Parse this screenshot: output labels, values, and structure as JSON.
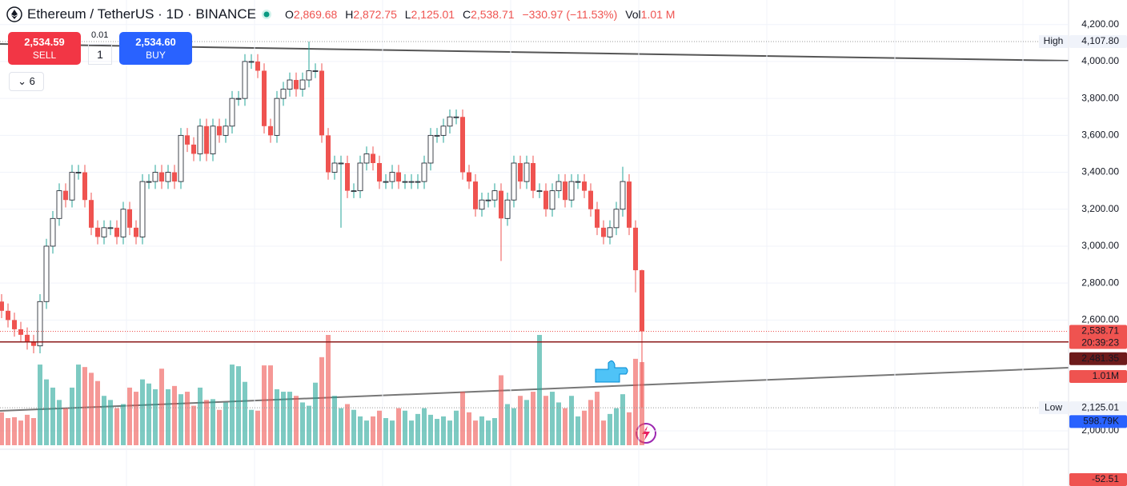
{
  "header": {
    "symbol": "Ethereum / TetherUS · 1D · BINANCE",
    "ohlc": [
      {
        "key": "O",
        "value": "2,869.68"
      },
      {
        "key": "H",
        "value": "2,872.75"
      },
      {
        "key": "L",
        "value": "2,125.01"
      },
      {
        "key": "C",
        "value": "2,538.71"
      }
    ],
    "change": "−330.97 (−11.53%)",
    "vol_key": "Vol",
    "vol": "1.01 M"
  },
  "trade": {
    "sell_price": "2,534.59",
    "sell": "SELL",
    "step": "0.01",
    "qty": "1",
    "buy_price": "2,534.60",
    "buy": "BUY"
  },
  "indicators_count": "6",
  "chart_data": {
    "type": "candlestick",
    "grid": true,
    "up_color": "#26a69a",
    "down_color": "#ef5350",
    "ylim": [
      1922,
      4333
    ],
    "yticks": [
      {
        "value": 2000,
        "label": "2,000.00"
      },
      {
        "value": 2600,
        "label": "2,600.00"
      },
      {
        "value": 2800,
        "label": "2,800.00"
      },
      {
        "value": 3000,
        "label": "3,000.00"
      },
      {
        "value": 3200,
        "label": "3,200.00"
      },
      {
        "value": 3400,
        "label": "3,400.00"
      },
      {
        "value": 3600,
        "label": "3,600.00"
      },
      {
        "value": 3800,
        "label": "3,800.00"
      },
      {
        "value": 4000,
        "label": "4,000.00"
      },
      {
        "value": 4200,
        "label": "4,200.00"
      }
    ],
    "candles": [
      [
        2700,
        2740,
        2610,
        2650
      ],
      [
        2650,
        2690,
        2560,
        2600
      ],
      [
        2600,
        2640,
        2510,
        2550
      ],
      [
        2550,
        2590,
        2480,
        2520
      ],
      [
        2520,
        2560,
        2440,
        2480
      ],
      [
        2480,
        2520,
        2420,
        2460
      ],
      [
        2460,
        2740,
        2420,
        2700
      ],
      [
        2700,
        3040,
        2660,
        3000
      ],
      [
        3000,
        3190,
        2960,
        3150
      ],
      [
        3150,
        3340,
        3110,
        3300
      ],
      [
        3300,
        3340,
        3210,
        3250
      ],
      [
        3250,
        3440,
        3210,
        3400
      ],
      [
        3400,
        3440,
        3360,
        3400
      ],
      [
        3400,
        3440,
        3210,
        3250
      ],
      [
        3250,
        3290,
        3060,
        3100
      ],
      [
        3100,
        3140,
        3010,
        3050
      ],
      [
        3050,
        3140,
        3010,
        3100
      ],
      [
        3100,
        3140,
        3060,
        3100
      ],
      [
        3100,
        3140,
        3010,
        3050
      ],
      [
        3050,
        3240,
        3010,
        3200
      ],
      [
        3200,
        3240,
        3060,
        3100
      ],
      [
        3100,
        3140,
        3010,
        3050
      ],
      [
        3050,
        3390,
        3010,
        3350
      ],
      [
        3350,
        3390,
        3310,
        3350
      ],
      [
        3350,
        3440,
        3310,
        3400
      ],
      [
        3400,
        3440,
        3310,
        3350
      ],
      [
        3350,
        3440,
        3310,
        3400
      ],
      [
        3400,
        3440,
        3310,
        3350
      ],
      [
        3350,
        3640,
        3310,
        3600
      ],
      [
        3600,
        3640,
        3510,
        3550
      ],
      [
        3550,
        3590,
        3460,
        3500
      ],
      [
        3500,
        3690,
        3460,
        3650
      ],
      [
        3650,
        3690,
        3460,
        3500
      ],
      [
        3500,
        3690,
        3460,
        3650
      ],
      [
        3650,
        3690,
        3560,
        3600
      ],
      [
        3600,
        3690,
        3560,
        3650
      ],
      [
        3650,
        3840,
        3610,
        3800
      ],
      [
        3800,
        3840,
        3760,
        3800
      ],
      [
        3800,
        4040,
        3760,
        4000
      ],
      [
        4000,
        4040,
        3960,
        4000
      ],
      [
        4000,
        4040,
        3910,
        3950
      ],
      [
        3950,
        3990,
        3610,
        3650
      ],
      [
        3650,
        3690,
        3560,
        3600
      ],
      [
        3600,
        3840,
        3560,
        3800
      ],
      [
        3800,
        3890,
        3760,
        3850
      ],
      [
        3850,
        3940,
        3810,
        3900
      ],
      [
        3900,
        3940,
        3810,
        3850
      ],
      [
        3850,
        3940,
        3810,
        3900
      ],
      [
        3900,
        4107.8,
        3860,
        3950
      ],
      [
        3950,
        3990,
        3910,
        3950
      ],
      [
        3950,
        3990,
        3560,
        3600
      ],
      [
        3600,
        3640,
        3360,
        3400
      ],
      [
        3400,
        3490,
        3360,
        3450
      ],
      [
        3450,
        3490,
        3100,
        3450
      ],
      [
        3450,
        3490,
        3260,
        3300
      ],
      [
        3300,
        3340,
        3260,
        3300
      ],
      [
        3300,
        3490,
        3260,
        3450
      ],
      [
        3450,
        3540,
        3410,
        3500
      ],
      [
        3500,
        3540,
        3410,
        3450
      ],
      [
        3450,
        3490,
        3310,
        3350
      ],
      [
        3350,
        3390,
        3310,
        3350
      ],
      [
        3350,
        3440,
        3310,
        3400
      ],
      [
        3400,
        3440,
        3310,
        3350
      ],
      [
        3350,
        3390,
        3310,
        3350
      ],
      [
        3350,
        3390,
        3310,
        3350
      ],
      [
        3350,
        3390,
        3310,
        3350
      ],
      [
        3350,
        3490,
        3310,
        3450
      ],
      [
        3450,
        3640,
        3410,
        3600
      ],
      [
        3600,
        3640,
        3560,
        3600
      ],
      [
        3600,
        3690,
        3560,
        3650
      ],
      [
        3650,
        3740,
        3610,
        3700
      ],
      [
        3700,
        3740,
        3660,
        3700
      ],
      [
        3700,
        3740,
        3360,
        3400
      ],
      [
        3400,
        3440,
        3310,
        3350
      ],
      [
        3350,
        3390,
        3160,
        3200
      ],
      [
        3200,
        3290,
        3160,
        3250
      ],
      [
        3250,
        3290,
        3210,
        3250
      ],
      [
        3250,
        3340,
        3210,
        3300
      ],
      [
        3300,
        3340,
        2920,
        3150
      ],
      [
        3150,
        3290,
        3110,
        3250
      ],
      [
        3250,
        3490,
        3210,
        3450
      ],
      [
        3450,
        3490,
        3310,
        3350
      ],
      [
        3350,
        3490,
        3310,
        3450
      ],
      [
        3450,
        3490,
        3260,
        3300
      ],
      [
        3300,
        3340,
        3260,
        3300
      ],
      [
        3300,
        3340,
        3160,
        3200
      ],
      [
        3200,
        3340,
        3160,
        3300
      ],
      [
        3300,
        3390,
        3260,
        3350
      ],
      [
        3350,
        3390,
        3210,
        3250
      ],
      [
        3250,
        3390,
        3210,
        3350
      ],
      [
        3350,
        3390,
        3310,
        3350
      ],
      [
        3350,
        3390,
        3260,
        3300
      ],
      [
        3300,
        3340,
        3160,
        3200
      ],
      [
        3200,
        3240,
        3060,
        3100
      ],
      [
        3100,
        3140,
        3010,
        3050
      ],
      [
        3050,
        3140,
        3010,
        3100
      ],
      [
        3100,
        3240,
        3060,
        3200
      ],
      [
        3200,
        3430,
        3160,
        3350
      ],
      [
        3350,
        3390,
        3060,
        3100
      ],
      [
        3100,
        3140,
        2750,
        2869.68
      ],
      [
        2869.68,
        2872.75,
        2125.01,
        2538.71
      ]
    ],
    "volume": [
      400000,
      330000,
      340000,
      300000,
      370000,
      330000,
      980000,
      800000,
      700000,
      550000,
      450000,
      700000,
      980000,
      950000,
      880000,
      780000,
      600000,
      550000,
      450000,
      500000,
      700000,
      650000,
      800000,
      750000,
      680000,
      930000,
      680000,
      720000,
      620000,
      650000,
      480000,
      700000,
      550000,
      560000,
      430000,
      520000,
      980000,
      960000,
      770000,
      430000,
      420000,
      970000,
      970000,
      680000,
      650000,
      650000,
      600000,
      520000,
      480000,
      760000,
      1070000,
      1340000,
      600000,
      450000,
      500000,
      430000,
      350000,
      300000,
      350000,
      420000,
      330000,
      300000,
      450000,
      420000,
      300000,
      380000,
      450000,
      370000,
      320000,
      350000,
      300000,
      420000,
      650000,
      400000,
      300000,
      350000,
      300000,
      330000,
      850000,
      500000,
      450000,
      600000,
      550000,
      650000,
      1340000,
      600000,
      650000,
      520000,
      450000,
      600000,
      350000,
      420000,
      550000,
      650000,
      300000,
      380000,
      450000,
      620000,
      400000,
      1050000,
      1010000
    ],
    "high": {
      "name": "High",
      "value": 4107.8,
      "label": "4,107.80"
    },
    "low": {
      "name": "Low",
      "value": 2125.01,
      "label": "2,125.01"
    },
    "last_price": {
      "value": 2538.71,
      "label": "2,538.71",
      "countdown": "20:39:23"
    },
    "line_level": {
      "value": 2481.35,
      "label": "2,481.35"
    },
    "volume_last": {
      "value": 1010000,
      "label": "1.01M"
    },
    "volume_ma": {
      "value": 598790,
      "label": "598.79K"
    },
    "macd_last": -52.51
  }
}
